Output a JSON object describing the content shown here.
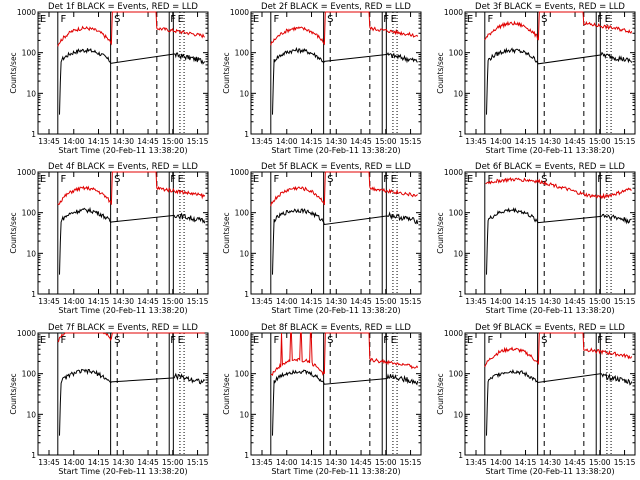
{
  "panel_title_suffix": "BLACK = Events, RED = LLD",
  "xlabel": "Start Time (20-Feb-11 13:38:20)",
  "ylabel": "Counts/sec",
  "x_ticks": [
    "13:45",
    "14:00",
    "14:15",
    "14:30",
    "14:45",
    "15:00",
    "15:15"
  ],
  "y_ticks": [
    "1",
    "10",
    "100",
    "1000"
  ],
  "colors": {
    "events": "#000000",
    "lld": "#e00000",
    "axes": "#000000"
  },
  "chart_data": [
    {
      "type": "line",
      "title": "Det 1f",
      "red_level": "low"
    },
    {
      "type": "line",
      "title": "Det 2f",
      "red_level": "low"
    },
    {
      "type": "line",
      "title": "Det 3f",
      "red_level": "mid"
    },
    {
      "type": "line",
      "title": "Det 4f",
      "red_level": "low"
    },
    {
      "type": "line",
      "title": "Det 5f",
      "red_level": "low"
    },
    {
      "type": "line",
      "title": "Det 6f",
      "red_level": "flat"
    },
    {
      "type": "line",
      "title": "Det 7f",
      "red_level": "high"
    },
    {
      "type": "line",
      "title": "Det 8f",
      "red_level": "spiky"
    },
    {
      "type": "line",
      "title": "Det 9f",
      "red_level": "low"
    }
  ],
  "markers": [
    "E",
    "F",
    "S",
    "F",
    "E"
  ],
  "chart_meta": {
    "x_range": [
      "13:38:20",
      "15:21"
    ],
    "y_scale": "log",
    "y_range": [
      1,
      1000
    ],
    "series": [
      {
        "name": "Events",
        "color": "#000000"
      },
      {
        "name": "LLD",
        "color": "#e00000"
      }
    ]
  }
}
